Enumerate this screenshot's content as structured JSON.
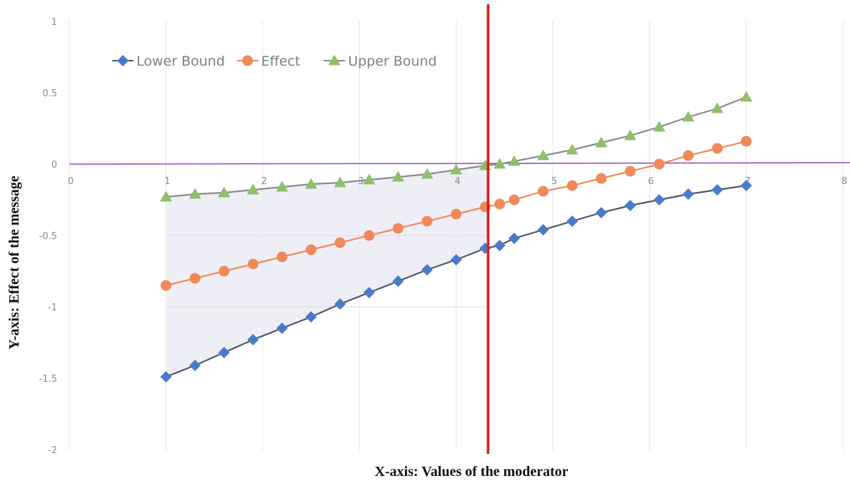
{
  "chart_data": {
    "type": "line",
    "xlabel": "X-axis: Values of the moderator",
    "ylabel": "Y-axis: Effect of the message",
    "xlim": [
      0,
      8
    ],
    "ylim": [
      -2,
      1
    ],
    "x_ticks": [
      "0",
      "1",
      "2",
      "3",
      "4",
      "5",
      "6",
      "7",
      "8"
    ],
    "y_ticks": [
      "1",
      "0.5",
      "0",
      "-0.5",
      "-1",
      "-1.5",
      "-2"
    ],
    "grid": "vertical",
    "legend_position": "top-left",
    "x": [
      1,
      1.3,
      1.6,
      1.9,
      2.2,
      2.5,
      2.8,
      3.1,
      3.4,
      3.7,
      4,
      4.3,
      4.45,
      4.6,
      4.9,
      5.2,
      5.5,
      5.8,
      6.1,
      6.4,
      6.7,
      7
    ],
    "series": [
      {
        "name": "Lower Bound",
        "marker": "diamond",
        "color": "#4a7ac9",
        "line_color": "#4e5868",
        "values": [
          -1.49,
          -1.41,
          -1.32,
          -1.23,
          -1.15,
          -1.07,
          -0.98,
          -0.9,
          -0.82,
          -0.74,
          -0.67,
          -0.59,
          -0.57,
          -0.52,
          -0.46,
          -0.4,
          -0.34,
          -0.29,
          -0.25,
          -0.21,
          -0.18,
          -0.15
        ]
      },
      {
        "name": "Effect",
        "marker": "circle",
        "color": "#f0895a",
        "line_color": "#f0895a",
        "values": [
          -0.85,
          -0.8,
          -0.75,
          -0.7,
          -0.65,
          -0.6,
          -0.55,
          -0.5,
          -0.45,
          -0.4,
          -0.35,
          -0.3,
          -0.28,
          -0.25,
          -0.19,
          -0.15,
          -0.1,
          -0.05,
          0.0,
          0.06,
          0.11,
          0.16
        ]
      },
      {
        "name": "Upper Bound",
        "marker": "triangle",
        "color": "#8fbf6a",
        "line_color": "#8a8a8a",
        "values": [
          -0.23,
          -0.21,
          -0.2,
          -0.18,
          -0.16,
          -0.14,
          -0.13,
          -0.11,
          -0.09,
          -0.07,
          -0.04,
          -0.01,
          0.0,
          0.02,
          0.06,
          0.1,
          0.15,
          0.2,
          0.26,
          0.33,
          0.39,
          0.47
        ]
      }
    ],
    "reference_lines": {
      "horizontal_y": 0,
      "horizontal_color": "#9a4fc9",
      "vertical_x": 4.33,
      "vertical_color": "#e01818"
    },
    "shaded_region": {
      "x_from": 1,
      "x_to": 4.33,
      "between": [
        "Lower Bound",
        "Upper Bound"
      ],
      "color": "#e8eaf3"
    }
  }
}
